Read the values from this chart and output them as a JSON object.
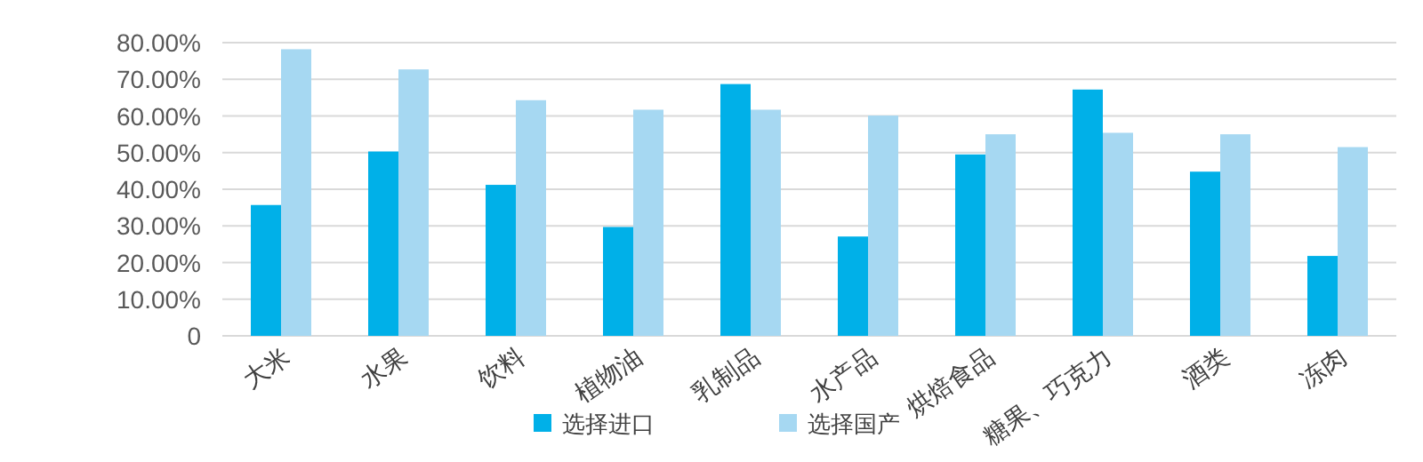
{
  "chart_data": {
    "type": "bar",
    "categories": [
      "大米",
      "水果",
      "饮料",
      "植物油",
      "乳制品",
      "水产品",
      "烘焙食品",
      "糖果、巧克力",
      "酒类",
      "冻肉"
    ],
    "series": [
      {
        "name": "选择进口",
        "color": "#00b0e8",
        "values": [
          35.7,
          50.3,
          41.2,
          29.7,
          68.7,
          27.1,
          49.5,
          67.2,
          44.8,
          21.8
        ]
      },
      {
        "name": "选择国产",
        "color": "#a6d8f2",
        "values": [
          78.2,
          72.7,
          64.3,
          61.7,
          61.7,
          60.1,
          55.0,
          55.4,
          55.0,
          51.5
        ]
      }
    ],
    "ylim": [
      0,
      80
    ],
    "yticks": [
      {
        "value": 0,
        "label": "0"
      },
      {
        "value": 10,
        "label": "10.00%"
      },
      {
        "value": 20,
        "label": "20.00%"
      },
      {
        "value": 30,
        "label": "30.00%"
      },
      {
        "value": 40,
        "label": "40.00%"
      },
      {
        "value": 50,
        "label": "50.00%"
      },
      {
        "value": 60,
        "label": "60.00%"
      },
      {
        "value": 70,
        "label": "70.00%"
      },
      {
        "value": 80,
        "label": "80.00%"
      }
    ],
    "grid": "y",
    "legend": "bottom"
  }
}
